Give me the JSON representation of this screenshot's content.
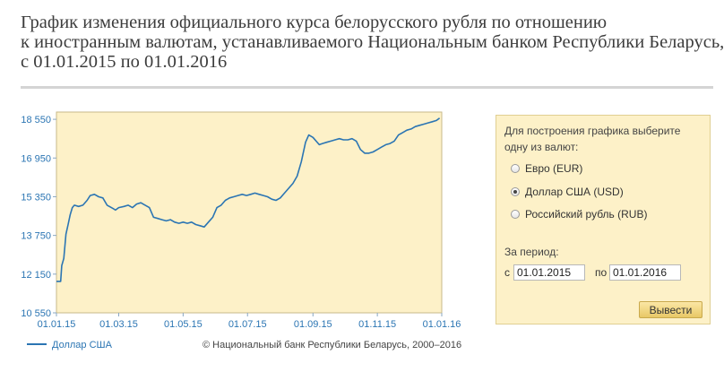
{
  "page": {
    "title_lines": [
      "График изменения официального курса белорусского рубля по отношению",
      "к иностранным валютам, устанавливаемого Национальным банком Республики Беларусь,",
      "с 01.01.2015 по 01.01.2016"
    ]
  },
  "chart_data": {
    "type": "line",
    "x_tick_labels": [
      "01.01.15",
      "01.03.15",
      "01.05.15",
      "01.07.15",
      "01.09.15",
      "01.11.15",
      "01.01.16"
    ],
    "y_tick_labels": [
      "10 550",
      "12 150",
      "13 750",
      "15 350",
      "16 950",
      "18 550"
    ],
    "ylim": [
      10550,
      18850
    ],
    "grid": false,
    "legend_position": "bottom-left",
    "series": [
      {
        "name": "Доллар США",
        "color": "#2b75b3",
        "points": [
          [
            "2015-01-01",
            11850
          ],
          [
            "2015-01-05",
            11850
          ],
          [
            "2015-01-06",
            12500
          ],
          [
            "2015-01-08",
            12800
          ],
          [
            "2015-01-10",
            13800
          ],
          [
            "2015-01-12",
            14200
          ],
          [
            "2015-01-14",
            14600
          ],
          [
            "2015-01-16",
            14900
          ],
          [
            "2015-01-18",
            15000
          ],
          [
            "2015-01-22",
            14950
          ],
          [
            "2015-01-26",
            15000
          ],
          [
            "2015-01-30",
            15200
          ],
          [
            "2015-02-02",
            15400
          ],
          [
            "2015-02-06",
            15450
          ],
          [
            "2015-02-10",
            15350
          ],
          [
            "2015-02-14",
            15300
          ],
          [
            "2015-02-18",
            15000
          ],
          [
            "2015-02-22",
            14900
          ],
          [
            "2015-02-26",
            14800
          ],
          [
            "2015-03-01",
            14900
          ],
          [
            "2015-03-06",
            14950
          ],
          [
            "2015-03-10",
            15000
          ],
          [
            "2015-03-14",
            14900
          ],
          [
            "2015-03-18",
            15050
          ],
          [
            "2015-03-22",
            15100
          ],
          [
            "2015-03-26",
            15000
          ],
          [
            "2015-03-30",
            14900
          ],
          [
            "2015-04-03",
            14500
          ],
          [
            "2015-04-07",
            14450
          ],
          [
            "2015-04-11",
            14400
          ],
          [
            "2015-04-15",
            14350
          ],
          [
            "2015-04-19",
            14400
          ],
          [
            "2015-04-23",
            14300
          ],
          [
            "2015-04-27",
            14250
          ],
          [
            "2015-05-01",
            14300
          ],
          [
            "2015-05-05",
            14250
          ],
          [
            "2015-05-09",
            14300
          ],
          [
            "2015-05-13",
            14200
          ],
          [
            "2015-05-17",
            14150
          ],
          [
            "2015-05-21",
            14100
          ],
          [
            "2015-05-25",
            14300
          ],
          [
            "2015-05-29",
            14500
          ],
          [
            "2015-06-02",
            14900
          ],
          [
            "2015-06-06",
            15000
          ],
          [
            "2015-06-10",
            15200
          ],
          [
            "2015-06-14",
            15300
          ],
          [
            "2015-06-18",
            15350
          ],
          [
            "2015-06-22",
            15400
          ],
          [
            "2015-06-26",
            15450
          ],
          [
            "2015-06-30",
            15400
          ],
          [
            "2015-07-04",
            15450
          ],
          [
            "2015-07-08",
            15500
          ],
          [
            "2015-07-12",
            15450
          ],
          [
            "2015-07-16",
            15400
          ],
          [
            "2015-07-20",
            15350
          ],
          [
            "2015-07-24",
            15250
          ],
          [
            "2015-07-28",
            15200
          ],
          [
            "2015-08-01",
            15300
          ],
          [
            "2015-08-05",
            15500
          ],
          [
            "2015-08-09",
            15700
          ],
          [
            "2015-08-13",
            15900
          ],
          [
            "2015-08-17",
            16200
          ],
          [
            "2015-08-21",
            16800
          ],
          [
            "2015-08-25",
            17600
          ],
          [
            "2015-08-28",
            17900
          ],
          [
            "2015-09-01",
            17800
          ],
          [
            "2015-09-04",
            17650
          ],
          [
            "2015-09-07",
            17500
          ],
          [
            "2015-09-10",
            17550
          ],
          [
            "2015-09-14",
            17600
          ],
          [
            "2015-09-18",
            17650
          ],
          [
            "2015-09-22",
            17700
          ],
          [
            "2015-09-26",
            17750
          ],
          [
            "2015-09-30",
            17700
          ],
          [
            "2015-10-04",
            17700
          ],
          [
            "2015-10-08",
            17750
          ],
          [
            "2015-10-12",
            17650
          ],
          [
            "2015-10-16",
            17300
          ],
          [
            "2015-10-20",
            17150
          ],
          [
            "2015-10-24",
            17150
          ],
          [
            "2015-10-28",
            17200
          ],
          [
            "2015-11-01",
            17300
          ],
          [
            "2015-11-05",
            17400
          ],
          [
            "2015-11-09",
            17500
          ],
          [
            "2015-11-13",
            17550
          ],
          [
            "2015-11-17",
            17650
          ],
          [
            "2015-11-21",
            17900
          ],
          [
            "2015-11-25",
            18000
          ],
          [
            "2015-11-29",
            18100
          ],
          [
            "2015-12-03",
            18150
          ],
          [
            "2015-12-07",
            18250
          ],
          [
            "2015-12-11",
            18300
          ],
          [
            "2015-12-15",
            18350
          ],
          [
            "2015-12-19",
            18400
          ],
          [
            "2015-12-23",
            18450
          ],
          [
            "2015-12-27",
            18500
          ],
          [
            "2015-12-30",
            18600
          ]
        ]
      }
    ],
    "footer_note": "© Национальный банк Республики Беларусь, 2000–2016"
  },
  "panel": {
    "prompt": "Для построения графика выберите одну из валют:",
    "currencies": [
      {
        "label": "Евро (EUR)",
        "selected": false
      },
      {
        "label": "Доллар США (USD)",
        "selected": true
      },
      {
        "label": "Российский рубль (RUB)",
        "selected": false
      }
    ],
    "period_label": "За период:",
    "from_label": "с",
    "from_value": "01.01.2015",
    "to_label": "по",
    "to_value": "01.01.2016",
    "submit_label": "Вывести"
  },
  "colors": {
    "plot_bg": "#fdf1c8",
    "panel_bg": "#fdf1c8",
    "axis_text": "#2b75b3",
    "line": "#2b75b3"
  }
}
